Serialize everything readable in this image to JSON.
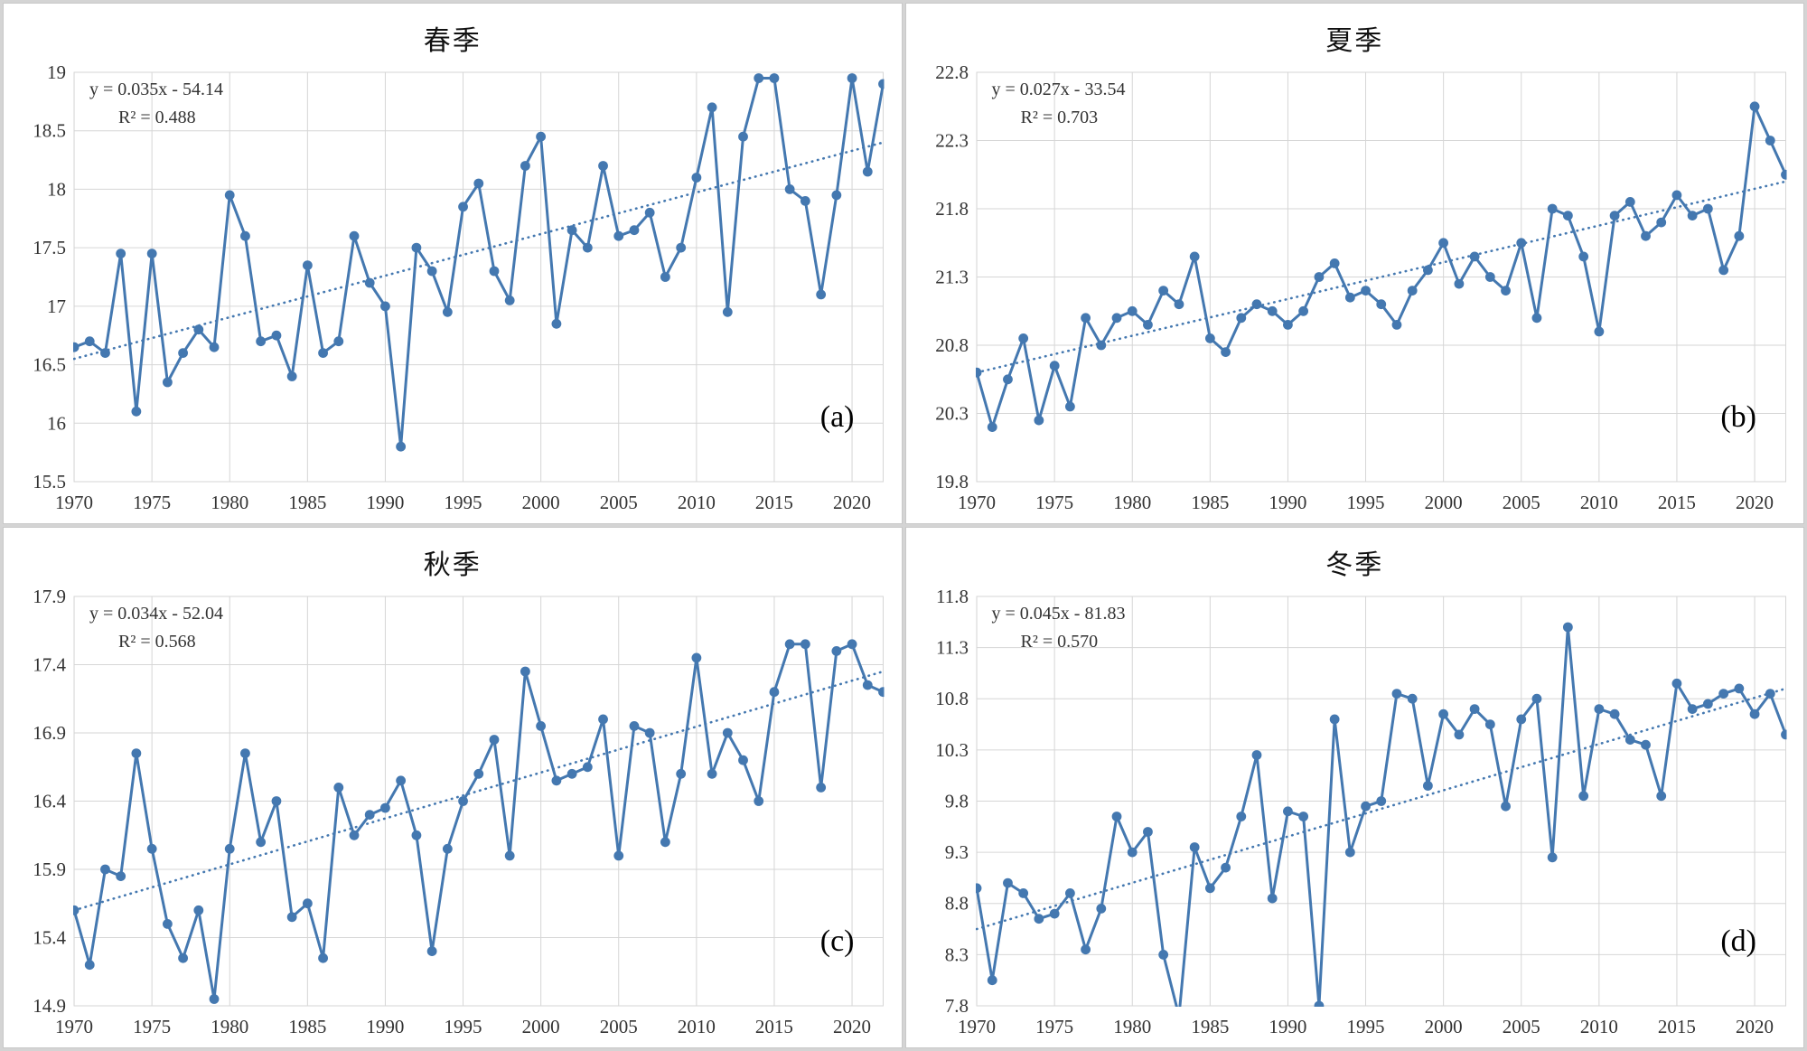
{
  "style": {
    "line_color": "#4478b0",
    "grid_color": "#d6d6d6",
    "tick_color": "#333333",
    "equation_color": "#3a3a3a",
    "panel_bg": "#ffffff"
  },
  "chart_data": [
    {
      "type": "line",
      "title": "春季",
      "panel_label": "(a)",
      "equation": "y = 0.035x - 54.14",
      "r2": "R² = 0.488",
      "year_range": [
        1970,
        2022
      ],
      "xticks": [
        1970,
        1975,
        1980,
        1985,
        1990,
        1995,
        2000,
        2005,
        2010,
        2015,
        2020
      ],
      "ylim": [
        15.5,
        19.0
      ],
      "ytick_step": 0.5,
      "grid": true,
      "legend": "none",
      "values": [
        16.65,
        16.7,
        16.6,
        17.45,
        16.1,
        17.45,
        16.35,
        16.6,
        16.8,
        16.65,
        17.95,
        17.6,
        16.7,
        16.75,
        16.4,
        17.35,
        16.6,
        16.7,
        17.6,
        17.2,
        17.0,
        15.8,
        17.5,
        17.3,
        16.95,
        17.85,
        18.05,
        17.3,
        17.05,
        18.2,
        18.45,
        16.85,
        17.65,
        17.5,
        18.2,
        17.6,
        17.65,
        17.8,
        17.25,
        17.5,
        18.1,
        18.7,
        16.95,
        18.45,
        18.95,
        18.95,
        18.0,
        17.9,
        17.1,
        17.95,
        18.95,
        18.15,
        18.9
      ],
      "trend": {
        "start": 16.55,
        "end": 18.4
      }
    },
    {
      "type": "line",
      "title": "夏季",
      "panel_label": "(b)",
      "equation": "y = 0.027x - 33.54",
      "r2": "R² = 0.703",
      "year_range": [
        1970,
        2022
      ],
      "xticks": [
        1970,
        1975,
        1980,
        1985,
        1990,
        1995,
        2000,
        2005,
        2010,
        2015,
        2020
      ],
      "ylim": [
        19.8,
        22.8
      ],
      "ytick_step": 0.5,
      "grid": true,
      "legend": "none",
      "values": [
        20.6,
        20.2,
        20.55,
        20.85,
        20.25,
        20.65,
        20.35,
        21.0,
        20.8,
        21.0,
        21.05,
        20.95,
        21.2,
        21.1,
        21.45,
        20.85,
        20.75,
        21.0,
        21.1,
        21.05,
        20.95,
        21.05,
        21.3,
        21.4,
        21.15,
        21.2,
        21.1,
        20.95,
        21.2,
        21.35,
        21.55,
        21.25,
        21.45,
        21.3,
        21.2,
        21.55,
        21.0,
        21.8,
        21.75,
        21.45,
        20.9,
        21.75,
        21.85,
        21.6,
        21.7,
        21.9,
        21.75,
        21.8,
        21.35,
        21.6,
        22.55,
        22.3,
        22.05
      ],
      "trend": {
        "start": 20.6,
        "end": 22.0
      }
    },
    {
      "type": "line",
      "title": "秋季",
      "panel_label": "(c)",
      "equation": "y = 0.034x - 52.04",
      "r2": "R² = 0.568",
      "year_range": [
        1970,
        2022
      ],
      "xticks": [
        1970,
        1975,
        1980,
        1985,
        1990,
        1995,
        2000,
        2005,
        2010,
        2015,
        2020
      ],
      "ylim": [
        14.9,
        17.9
      ],
      "ytick_step": 0.5,
      "grid": true,
      "legend": "none",
      "values": [
        15.6,
        15.2,
        15.9,
        15.85,
        16.75,
        16.05,
        15.5,
        15.25,
        15.6,
        14.95,
        16.05,
        16.75,
        16.1,
        16.4,
        15.55,
        15.65,
        15.25,
        16.5,
        16.15,
        16.3,
        16.35,
        16.55,
        16.15,
        15.3,
        16.05,
        16.4,
        16.6,
        16.85,
        16.0,
        17.35,
        16.95,
        16.55,
        16.6,
        16.65,
        17.0,
        16.0,
        16.95,
        16.9,
        16.1,
        16.6,
        17.45,
        16.6,
        16.9,
        16.7,
        16.4,
        17.2,
        17.55,
        17.55,
        16.5,
        17.5,
        17.55,
        17.25,
        17.2
      ],
      "trend": {
        "start": 15.6,
        "end": 17.35
      }
    },
    {
      "type": "line",
      "title": "冬季",
      "panel_label": "(d)",
      "equation": "y = 0.045x - 81.83",
      "r2": "R² = 0.570",
      "year_range": [
        1970,
        2022
      ],
      "xticks": [
        1970,
        1975,
        1980,
        1985,
        1990,
        1995,
        2000,
        2005,
        2010,
        2015,
        2020
      ],
      "ylim": [
        7.8,
        11.8
      ],
      "ytick_step": 0.5,
      "grid": true,
      "legend": "none",
      "values": [
        8.95,
        8.05,
        9.0,
        8.9,
        8.65,
        8.7,
        8.9,
        8.35,
        8.75,
        9.65,
        9.3,
        9.5,
        8.3,
        7.7,
        9.35,
        8.95,
        9.15,
        9.65,
        10.25,
        8.85,
        9.7,
        9.65,
        7.8,
        10.6,
        9.3,
        9.75,
        9.8,
        10.85,
        10.8,
        9.95,
        10.65,
        10.45,
        10.7,
        10.55,
        9.75,
        10.6,
        10.8,
        9.25,
        11.5,
        9.85,
        10.7,
        10.65,
        10.4,
        10.35,
        9.85,
        10.95,
        10.7,
        10.75,
        10.85,
        10.9,
        10.65,
        10.85,
        10.45
      ],
      "trend": {
        "start": 8.55,
        "end": 10.9
      }
    }
  ]
}
